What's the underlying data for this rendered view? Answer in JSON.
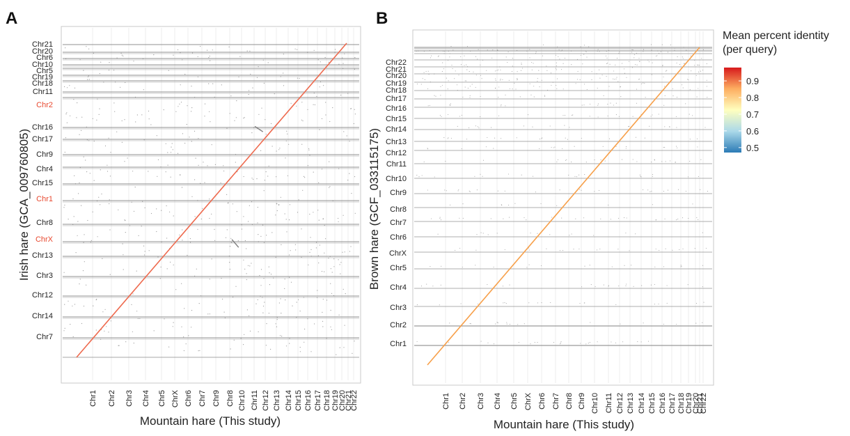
{
  "colors": {
    "highlight_label": "#e8482f",
    "alignment_A": "#ee6a4e",
    "alignment_B": "#f7a04a",
    "inverted_segment": "#7f7f7f",
    "scatter": "#6f6f6f",
    "bands": "#8a8a8a",
    "identity_scale": [
      "#2c7bb6",
      "#abd9e9",
      "#ffffbf",
      "#fdae61",
      "#d7191c"
    ]
  },
  "chart_data": [
    {
      "panel_label": "A",
      "type": "scatter",
      "xlabel": "Mountain hare (This study)",
      "ylabel": "Irish hare (GCA_009760805)",
      "x_ticks": [
        "Chr1",
        "Chr2",
        "Chr3",
        "Chr4",
        "Chr5",
        "ChrX",
        "Chr6",
        "Chr7",
        "Chr9",
        "Chr8",
        "Chr10",
        "Chr11",
        "Chr12",
        "Chr13",
        "Chr14",
        "Chr15",
        "Chr16",
        "Chr17",
        "Chr18",
        "Chr19",
        "Chr20",
        "Chr21",
        "Chr22"
      ],
      "y_ticks": [
        "Chr7",
        "Chr14",
        "Chr12",
        "Chr3",
        "Chr13",
        "ChrX",
        "Chr8",
        "Chr1",
        "Chr15",
        "Chr4",
        "Chr9",
        "Chr17",
        "Chr16",
        "Chr2",
        "Chr11",
        "Chr18",
        "Chr19",
        "Chr5",
        "Chr10",
        "Chr6",
        "Chr20",
        "Chr21"
      ],
      "highlighted_y": [
        "Chr2",
        "Chr1",
        "ChrX"
      ],
      "series": [
        {
          "values": [
            [
              0.0,
              0.0
            ],
            [
              1.0,
              1.0
            ]
          ]
        }
      ],
      "inverted_segments": [
        [
          [
            0.66,
            0.718
          ],
          [
            0.69,
            0.735
          ]
        ],
        [
          [
            0.575,
            0.35
          ],
          [
            0.6,
            0.375
          ]
        ]
      ],
      "legend": "none",
      "grid": true
    },
    {
      "panel_label": "B",
      "type": "scatter",
      "xlabel": "Mountain hare (This study)",
      "ylabel": "Brown hare (GCF_033115175)",
      "x_ticks": [
        "Chr1",
        "Chr2",
        "Chr3",
        "Chr4",
        "Chr5",
        "ChrX",
        "Chr6",
        "Chr7",
        "Chr8",
        "Chr9",
        "Chr10",
        "Chr11",
        "Chr12",
        "Chr13",
        "Chr14",
        "Chr15",
        "Chr16",
        "Chr17",
        "Chr18",
        "Chr19",
        "Chr20",
        "Chr21",
        "Chr22"
      ],
      "y_ticks": [
        "Chr1",
        "Chr2",
        "Chr3",
        "Chr4",
        "Chr5",
        "ChrX",
        "Chr6",
        "Chr7",
        "Chr8",
        "Chr9",
        "Chr10",
        "Chr11",
        "Chr12",
        "Chr13",
        "Chr14",
        "Chr15",
        "Chr16",
        "Chr17",
        "Chr18",
        "Chr19",
        "Chr20",
        "Chr21",
        "Chr22"
      ],
      "series": [
        {
          "values": [
            [
              0.0,
              0.0
            ],
            [
              1.0,
              1.0
            ]
          ]
        }
      ],
      "legend": "right",
      "legend_title": [
        "Mean percent identity",
        "(per query)"
      ],
      "legend_ticks": [
        "0.9",
        "0.8",
        "0.7",
        "0.6",
        "0.5"
      ],
      "legend_range": [
        0.47,
        0.98
      ],
      "grid": true
    }
  ]
}
